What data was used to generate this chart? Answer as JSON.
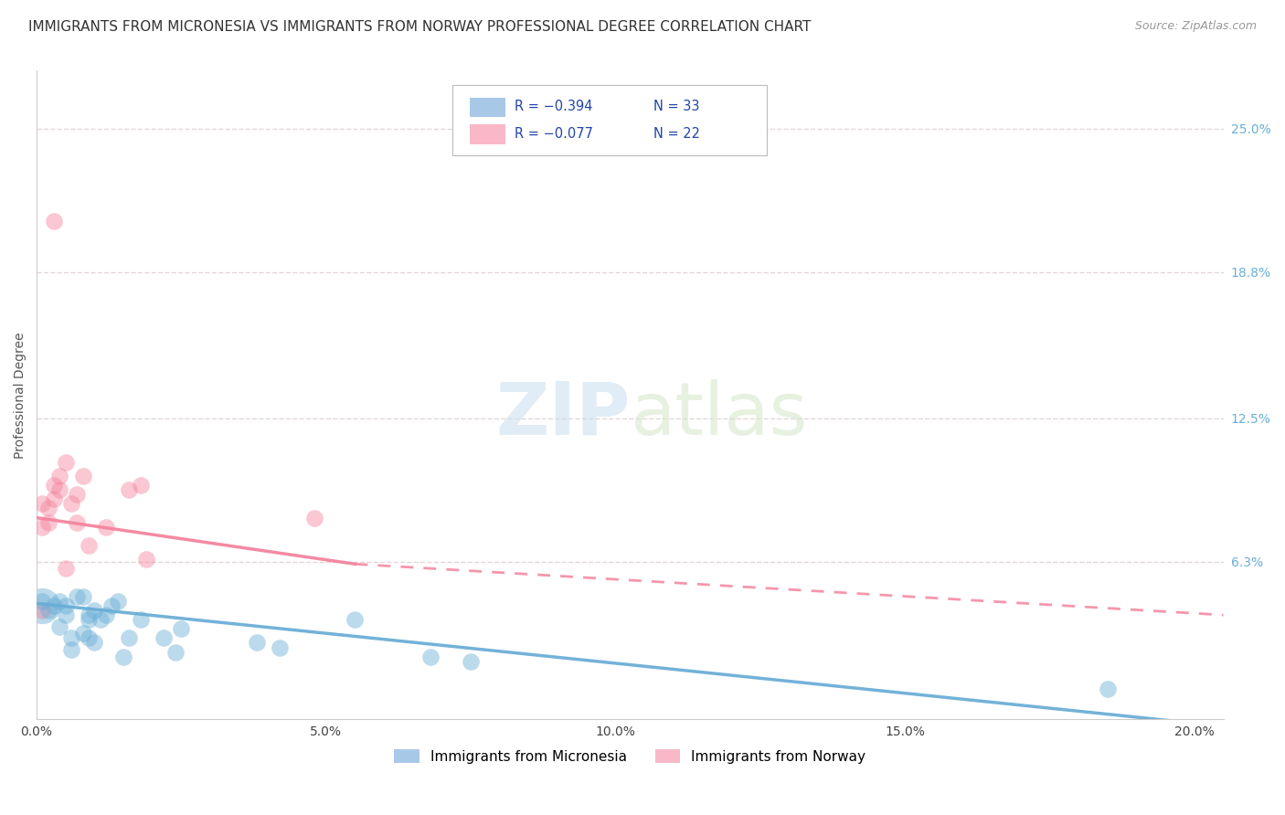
{
  "title": "IMMIGRANTS FROM MICRONESIA VS IMMIGRANTS FROM NORWAY PROFESSIONAL DEGREE CORRELATION CHART",
  "source": "Source: ZipAtlas.com",
  "ylabel_label": "Professional Degree",
  "x_tick_labels": [
    "0.0%",
    "5.0%",
    "10.0%",
    "15.0%",
    "20.0%"
  ],
  "x_tick_values": [
    0.0,
    0.05,
    0.1,
    0.15,
    0.2
  ],
  "y_tick_labels": [
    "6.3%",
    "12.5%",
    "18.8%",
    "25.0%"
  ],
  "y_tick_values": [
    0.063,
    0.125,
    0.188,
    0.25
  ],
  "xlim": [
    0.0,
    0.205
  ],
  "ylim": [
    -0.005,
    0.275
  ],
  "legend_bottom_labels": [
    "Immigrants from Micronesia",
    "Immigrants from Norway"
  ],
  "micronesia_color": "#6aaed6",
  "norway_color": "#f4849e",
  "micronesia_legend_color": "#a8c8e8",
  "norway_legend_color": "#f8b8c8",
  "micronesia_scatter": [
    [
      0.001,
      0.046
    ],
    [
      0.002,
      0.042
    ],
    [
      0.003,
      0.044
    ],
    [
      0.004,
      0.046
    ],
    [
      0.004,
      0.035
    ],
    [
      0.005,
      0.04
    ],
    [
      0.005,
      0.044
    ],
    [
      0.006,
      0.03
    ],
    [
      0.006,
      0.025
    ],
    [
      0.007,
      0.048
    ],
    [
      0.008,
      0.032
    ],
    [
      0.008,
      0.048
    ],
    [
      0.009,
      0.04
    ],
    [
      0.009,
      0.038
    ],
    [
      0.009,
      0.03
    ],
    [
      0.01,
      0.042
    ],
    [
      0.01,
      0.028
    ],
    [
      0.011,
      0.038
    ],
    [
      0.012,
      0.04
    ],
    [
      0.013,
      0.044
    ],
    [
      0.014,
      0.046
    ],
    [
      0.015,
      0.022
    ],
    [
      0.016,
      0.03
    ],
    [
      0.018,
      0.038
    ],
    [
      0.022,
      0.03
    ],
    [
      0.024,
      0.024
    ],
    [
      0.025,
      0.034
    ],
    [
      0.038,
      0.028
    ],
    [
      0.042,
      0.026
    ],
    [
      0.055,
      0.038
    ],
    [
      0.068,
      0.022
    ],
    [
      0.075,
      0.02
    ],
    [
      0.185,
      0.008
    ]
  ],
  "norway_scatter": [
    [
      0.001,
      0.078
    ],
    [
      0.001,
      0.088
    ],
    [
      0.002,
      0.08
    ],
    [
      0.002,
      0.086
    ],
    [
      0.003,
      0.096
    ],
    [
      0.003,
      0.09
    ],
    [
      0.004,
      0.1
    ],
    [
      0.004,
      0.094
    ],
    [
      0.005,
      0.106
    ],
    [
      0.005,
      0.06
    ],
    [
      0.006,
      0.088
    ],
    [
      0.007,
      0.092
    ],
    [
      0.007,
      0.08
    ],
    [
      0.008,
      0.1
    ],
    [
      0.009,
      0.07
    ],
    [
      0.012,
      0.078
    ],
    [
      0.016,
      0.094
    ],
    [
      0.018,
      0.096
    ],
    [
      0.019,
      0.064
    ],
    [
      0.048,
      0.082
    ],
    [
      0.003,
      0.21
    ],
    [
      0.001,
      0.042
    ]
  ],
  "mic_trend_x0": 0.0,
  "mic_trend_y0": 0.045,
  "mic_trend_x1": 0.205,
  "mic_trend_y1": -0.008,
  "nor_trend_solid_x0": 0.0,
  "nor_trend_solid_y0": 0.082,
  "nor_trend_solid_x1": 0.055,
  "nor_trend_solid_y1": 0.062,
  "nor_trend_dash_x0": 0.055,
  "nor_trend_dash_y0": 0.062,
  "nor_trend_dash_x1": 0.205,
  "nor_trend_dash_y1": 0.04,
  "background_color": "#ffffff",
  "grid_color": "#ddcccc",
  "title_fontsize": 11,
  "source_fontsize": 9,
  "axis_label_fontsize": 10,
  "tick_fontsize": 10,
  "legend_R1": "R = −0.394",
  "legend_N1": "N = 33",
  "legend_R2": "R = −0.077",
  "legend_N2": "N = 22"
}
